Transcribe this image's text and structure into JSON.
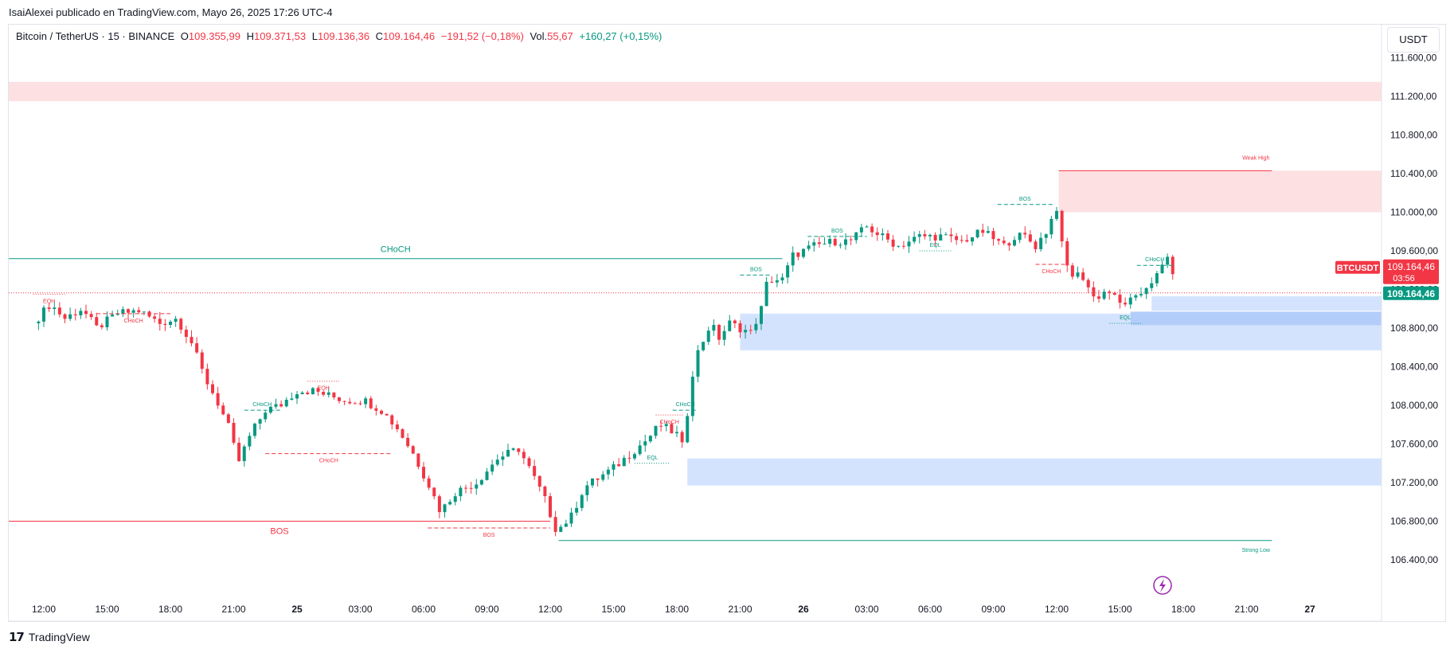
{
  "header": {
    "published": "IsaiAlexei publicado en TradingView.com, Mayo 26, 2025 17:26 UTC-4"
  },
  "legend": {
    "symbol": "Bitcoin / TetherUS · 15 · BINANCE",
    "o_label": "O",
    "o_value": "109.355,99",
    "h_label": "H",
    "h_value": "109.371,53",
    "l_label": "L",
    "l_value": "109.136,36",
    "c_label": "C",
    "c_value": "109.164,46",
    "change": "−191,52 (−0,18%)",
    "vol_label": "Vol.",
    "vol_value": "55,67",
    "vol_change": "+160,27 (+0,15%)"
  },
  "currency_button": "USDT",
  "footer": {
    "brand": "TradingView"
  },
  "chart_data": {
    "type": "candlestick",
    "title": "Bitcoin / TetherUS · 15 · BINANCE",
    "symbol": "BTCUSDT",
    "interval": "15",
    "exchange": "BINANCE",
    "last_price": 109164.46,
    "last_price_label": "109.164,46",
    "countdown": "03:56",
    "price_tag_label": "BTCUSDT",
    "ylim": [
      106150,
      111900
    ],
    "y_ticks": [
      106400,
      106800,
      107200,
      107600,
      108000,
      108400,
      108800,
      109200,
      109600,
      110000,
      110400,
      110800,
      111200,
      111600
    ],
    "y_tick_labels": [
      "106.400,00",
      "106.800,00",
      "107.200,00",
      "107.600,00",
      "108.000,00",
      "108.400,00",
      "108.800,00",
      "109.200,00",
      "109.600,00",
      "110.000,00",
      "110.400,00",
      "110.800,00",
      "111.200,00",
      "111.600,00"
    ],
    "x_tick_labels": [
      "12:00",
      "15:00",
      "18:00",
      "21:00",
      "25",
      "03:00",
      "06:00",
      "09:00",
      "12:00",
      "15:00",
      "18:00",
      "21:00",
      "26",
      "03:00",
      "06:00",
      "09:00",
      "12:00",
      "15:00",
      "18:00",
      "21:00",
      "27",
      "03:00"
    ],
    "x_tick_hours": [
      0,
      3,
      6,
      9,
      12,
      15,
      18,
      21,
      24,
      27,
      30,
      33,
      36,
      39,
      42,
      45,
      48,
      51,
      54,
      57,
      60,
      63
    ],
    "x_tick_bold": [
      "25",
      "26",
      "27"
    ],
    "grid": false,
    "colors": {
      "up": "#089981",
      "down": "#f23645",
      "supply": "#fde0e1",
      "demand": "#d4e3fd",
      "demand_dark": "#b3cdfa",
      "bull_struct": "#089981",
      "bear_struct": "#f23645"
    },
    "candle_anchors": [
      [
        -0.5,
        108850
      ],
      [
        0.3,
        109050
      ],
      [
        1.0,
        108900
      ],
      [
        1.8,
        109000
      ],
      [
        2.5,
        108800
      ],
      [
        3.5,
        108950
      ],
      [
        4.5,
        108980
      ],
      [
        5.5,
        108850
      ],
      [
        6.3,
        108900
      ],
      [
        7.0,
        108650
      ],
      [
        7.6,
        108300
      ],
      [
        8.2,
        108050
      ],
      [
        8.8,
        107750
      ],
      [
        9.2,
        107400
      ],
      [
        9.8,
        107700
      ],
      [
        10.5,
        107950
      ],
      [
        11.2,
        108000
      ],
      [
        12.0,
        108150
      ],
      [
        12.8,
        108150
      ],
      [
        13.5,
        108100
      ],
      [
        14.3,
        108050
      ],
      [
        15.2,
        108050
      ],
      [
        16.0,
        107950
      ],
      [
        16.8,
        107750
      ],
      [
        17.5,
        107500
      ],
      [
        18.2,
        107200
      ],
      [
        18.8,
        106900
      ],
      [
        19.5,
        107100
      ],
      [
        20.5,
        107200
      ],
      [
        21.5,
        107450
      ],
      [
        22.5,
        107550
      ],
      [
        23.0,
        107350
      ],
      [
        23.7,
        107050
      ],
      [
        24.3,
        106700
      ],
      [
        25.0,
        106850
      ],
      [
        25.6,
        107150
      ],
      [
        26.3,
        107250
      ],
      [
        27.0,
        107350
      ],
      [
        27.8,
        107500
      ],
      [
        28.6,
        107650
      ],
      [
        29.2,
        107800
      ],
      [
        30.0,
        107700
      ],
      [
        30.3,
        107550
      ],
      [
        30.7,
        108300
      ],
      [
        31.0,
        108550
      ],
      [
        31.6,
        108850
      ],
      [
        32.0,
        108700
      ],
      [
        32.5,
        108850
      ],
      [
        33.5,
        108750
      ],
      [
        34.0,
        109000
      ],
      [
        34.3,
        109300
      ],
      [
        35.0,
        109300
      ],
      [
        35.5,
        109550
      ],
      [
        36.5,
        109650
      ],
      [
        37.5,
        109700
      ],
      [
        38.2,
        109700
      ],
      [
        39.0,
        109850
      ],
      [
        39.7,
        109750
      ],
      [
        40.5,
        109650
      ],
      [
        41.5,
        109750
      ],
      [
        42.5,
        109750
      ],
      [
        43.5,
        109700
      ],
      [
        44.5,
        109800
      ],
      [
        45.5,
        109650
      ],
      [
        46.0,
        109750
      ],
      [
        46.5,
        109750
      ],
      [
        47.0,
        109650
      ],
      [
        47.5,
        109800
      ],
      [
        48.0,
        110050
      ],
      [
        48.2,
        109700
      ],
      [
        48.6,
        109350
      ],
      [
        49.2,
        109350
      ],
      [
        49.8,
        109100
      ],
      [
        50.4,
        109200
      ],
      [
        51.0,
        109050
      ],
      [
        51.8,
        109100
      ],
      [
        52.3,
        109250
      ],
      [
        52.8,
        109350
      ],
      [
        53.3,
        109550
      ],
      [
        53.6,
        109300
      ]
    ],
    "smc_lines": [
      {
        "label": "CHoCH",
        "style": "solid",
        "side": "bull",
        "price": 109520,
        "x0": -6.0,
        "x1": 35.0
      },
      {
        "label": "BOS",
        "style": "solid",
        "side": "bear",
        "price": 106800,
        "x0": -6.0,
        "x1": 24.0
      },
      {
        "label": "EQH",
        "style": "dotted",
        "side": "bear",
        "price": 109150,
        "x0": -0.5,
        "x1": 1.0
      },
      {
        "label": "CHoCH",
        "style": "dashed",
        "side": "bear",
        "price": 108950,
        "x0": 2.5,
        "x1": 6.0
      },
      {
        "label": "CHoCH",
        "style": "dashed",
        "side": "bull",
        "price": 107950,
        "x0": 9.5,
        "x1": 11.2
      },
      {
        "label": "EQH",
        "style": "dotted",
        "side": "bear",
        "price": 108250,
        "x0": 12.5,
        "x1": 14.0
      },
      {
        "label": "CHoCH",
        "style": "dashed",
        "side": "bear",
        "price": 107500,
        "x0": 10.5,
        "x1": 16.5
      },
      {
        "label": "BOS",
        "style": "dashed",
        "side": "bear",
        "price": 106730,
        "x0": 18.2,
        "x1": 24.0
      },
      {
        "label": "EQL",
        "style": "dotted",
        "side": "bull",
        "price": 107400,
        "x0": 28.0,
        "x1": 29.7
      },
      {
        "label": "CHoCH",
        "style": "dotted",
        "side": "bear",
        "price": 107900,
        "x0": 29.0,
        "x1": 30.3
      },
      {
        "label": "CHoCH",
        "style": "dashed",
        "side": "bull",
        "price": 107950,
        "x0": 29.8,
        "x1": 31.0
      },
      {
        "label": "BOS",
        "style": "dashed",
        "side": "bull",
        "price": 109350,
        "x0": 33.0,
        "x1": 34.5
      },
      {
        "label": "BOS",
        "style": "dashed",
        "side": "bull",
        "price": 109750,
        "x0": 36.2,
        "x1": 39.0
      },
      {
        "label": "EQL",
        "style": "dotted",
        "side": "bull",
        "price": 109600,
        "x0": 41.5,
        "x1": 43.0
      },
      {
        "label": "BOS",
        "style": "dashed",
        "side": "bull",
        "price": 110080,
        "x0": 45.2,
        "x1": 47.8
      },
      {
        "label": "CHoCH",
        "style": "dashed",
        "side": "bear",
        "price": 109460,
        "x0": 47.0,
        "x1": 48.5
      },
      {
        "label": "CHoCH",
        "style": "dashed",
        "side": "bull",
        "price": 109450,
        "x0": 51.8,
        "x1": 53.5
      },
      {
        "label": "EQL",
        "style": "dotted",
        "side": "bull",
        "price": 108850,
        "x0": 50.5,
        "x1": 52.0
      }
    ],
    "swing_lines": [
      {
        "label": "Weak High",
        "side": "bear",
        "price": 110430,
        "x0": 48.1,
        "x1": 58.2
      },
      {
        "label": "Strong Low",
        "side": "bull",
        "price": 106600,
        "x0": 24.4,
        "x1": 58.2
      }
    ],
    "zones": [
      {
        "kind": "supply",
        "top": 111350,
        "bottom": 111150,
        "x0": -6.0
      },
      {
        "kind": "supply",
        "top": 110430,
        "bottom": 110000,
        "x0": 48.1
      },
      {
        "kind": "demand",
        "top": 108950,
        "bottom": 108570,
        "x0": 33.0
      },
      {
        "kind": "demand",
        "top": 107450,
        "bottom": 107170,
        "x0": 30.5
      },
      {
        "kind": "demand",
        "top": 109130,
        "bottom": 108980,
        "x0": 52.5
      },
      {
        "kind": "demand_dark",
        "top": 108970,
        "bottom": 108830,
        "x0": 51.5
      }
    ]
  }
}
